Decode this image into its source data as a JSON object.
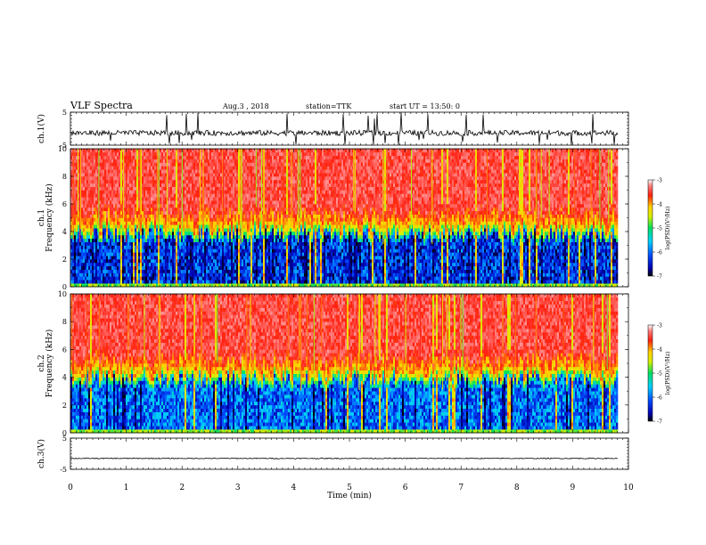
{
  "header": {
    "title": "VLF Spectra",
    "date": "Aug.3 , 2018",
    "station": "station=TTK",
    "start": "start UT = 13:50: 0"
  },
  "chart_data": [
    {
      "type": "line",
      "ylabel": "ch.1(V)",
      "ylim": [
        -5,
        5
      ],
      "yticks": [
        "5",
        "-5"
      ],
      "xlim": [
        0,
        10
      ],
      "baseline": -1.3,
      "color": "#000000"
    },
    {
      "type": "heatmap",
      "ylabel": "ch.1\nFrequency (kHz)",
      "ylim": [
        0,
        10
      ],
      "yticks": [
        "0",
        "2",
        "4",
        "6",
        "8",
        "10"
      ],
      "xlim": [
        0,
        9.8
      ],
      "colorbar": {
        "label": "log(PSD)(V²/Hz)",
        "range": [
          -7,
          -3
        ],
        "ticks": [
          "-3",
          "-4",
          "-5",
          "-6",
          "-7"
        ]
      },
      "description_levels": {
        "below_4kHz": -6.5,
        "transition_kHz": 4.5,
        "above_5kHz": -3.5
      }
    },
    {
      "type": "heatmap",
      "ylabel": "ch.2\nFrequency (kHz)",
      "ylim": [
        0,
        10
      ],
      "yticks": [
        "0",
        "2",
        "4",
        "6",
        "8",
        "10"
      ],
      "xlim": [
        0,
        9.8
      ],
      "colorbar": {
        "label": "log(PSD)(V²/Hz)",
        "range": [
          -7,
          -3
        ],
        "ticks": [
          "-3",
          "-4",
          "-5",
          "-6",
          "-7"
        ]
      },
      "description_levels": {
        "below_4kHz": -6.2,
        "transition_kHz": 4.5,
        "above_5kHz": -3.5
      }
    },
    {
      "type": "line",
      "ylabel": "ch.3(V)",
      "ylim": [
        -5,
        5
      ],
      "yticks": [
        "5",
        "-5"
      ],
      "xlim": [
        0,
        10
      ],
      "baseline": -1.5,
      "xlabel": "Time (min)",
      "xticks": [
        "0",
        "1",
        "2",
        "3",
        "4",
        "5",
        "6",
        "7",
        "8",
        "9",
        "10"
      ],
      "color": "#000000"
    }
  ]
}
